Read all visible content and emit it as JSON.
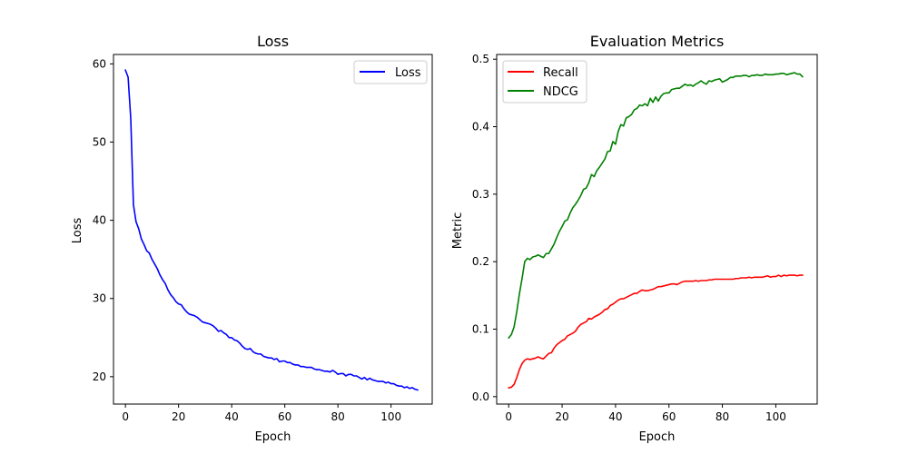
{
  "chart_data": [
    {
      "type": "line",
      "title": "Loss",
      "xlabel": "Epoch",
      "ylabel": "Loss",
      "xlim": [
        -4.5,
        115.5
      ],
      "ylim": [
        16.5,
        61.2
      ],
      "xticks": [
        0,
        20,
        40,
        60,
        80,
        100
      ],
      "yticks": [
        20,
        30,
        40,
        50,
        60
      ],
      "grid": false,
      "legend_position": "top-right",
      "series": [
        {
          "name": "Loss",
          "color": "#0000ff",
          "x": [
            0,
            1,
            2,
            3,
            4,
            5,
            6,
            7,
            8,
            9,
            10,
            11,
            12,
            13,
            14,
            15,
            16,
            17,
            18,
            19,
            20,
            21,
            22,
            23,
            24,
            25,
            26,
            27,
            28,
            29,
            30,
            31,
            32,
            33,
            34,
            35,
            36,
            37,
            38,
            39,
            40,
            41,
            42,
            43,
            44,
            45,
            46,
            47,
            48,
            49,
            50,
            51,
            52,
            53,
            54,
            55,
            56,
            57,
            58,
            59,
            60,
            61,
            62,
            63,
            64,
            65,
            66,
            67,
            68,
            69,
            70,
            71,
            72,
            73,
            74,
            75,
            76,
            77,
            78,
            79,
            80,
            81,
            82,
            83,
            84,
            85,
            86,
            87,
            88,
            89,
            90,
            91,
            92,
            93,
            94,
            95,
            96,
            97,
            98,
            99,
            100,
            101,
            102,
            103,
            104,
            105,
            106,
            107,
            108,
            109,
            110
          ],
          "values": [
            59.2,
            58.3,
            53.0,
            42.0,
            39.8,
            38.9,
            37.6,
            36.9,
            36.1,
            35.8,
            35.0,
            34.4,
            33.8,
            33.0,
            32.4,
            31.9,
            31.1,
            30.5,
            30.1,
            29.6,
            29.3,
            29.2,
            28.7,
            28.3,
            28.0,
            27.9,
            27.8,
            27.6,
            27.3,
            27.0,
            26.9,
            26.8,
            26.7,
            26.5,
            26.2,
            25.8,
            25.9,
            25.6,
            25.4,
            25.0,
            25.0,
            24.7,
            24.6,
            24.3,
            23.9,
            23.6,
            23.5,
            23.6,
            23.2,
            23.0,
            22.9,
            22.9,
            22.6,
            22.5,
            22.4,
            22.4,
            22.2,
            22.3,
            21.9,
            22.0,
            22.0,
            21.8,
            21.8,
            21.6,
            21.5,
            21.5,
            21.3,
            21.3,
            21.2,
            21.2,
            21.2,
            21.0,
            20.9,
            20.9,
            20.8,
            20.7,
            20.7,
            20.6,
            20.8,
            20.6,
            20.3,
            20.4,
            20.4,
            20.1,
            20.3,
            20.3,
            20.1,
            20.1,
            19.9,
            19.7,
            19.9,
            19.6,
            19.8,
            19.6,
            19.5,
            19.4,
            19.4,
            19.4,
            19.2,
            19.3,
            19.1,
            19.1,
            18.9,
            18.8,
            18.8,
            18.6,
            18.7,
            18.5,
            18.6,
            18.4,
            18.3
          ]
        }
      ]
    },
    {
      "type": "line",
      "title": "Evaluation Metrics",
      "xlabel": "Epoch",
      "ylabel": "Metric",
      "xlim": [
        -4.5,
        115.5
      ],
      "ylim": [
        -0.011,
        0.507
      ],
      "xticks": [
        0,
        20,
        40,
        60,
        80,
        100
      ],
      "yticks": [
        0.0,
        0.1,
        0.2,
        0.3,
        0.4,
        0.5
      ],
      "ytick_labels": [
        "0.0",
        "0.1",
        "0.2",
        "0.3",
        "0.4",
        "0.5"
      ],
      "grid": false,
      "legend_position": "top-left",
      "series": [
        {
          "name": "Recall",
          "color": "#ff0000",
          "x": [
            0,
            1,
            2,
            3,
            4,
            5,
            6,
            7,
            8,
            9,
            10,
            11,
            12,
            13,
            14,
            15,
            16,
            17,
            18,
            19,
            20,
            21,
            22,
            23,
            24,
            25,
            26,
            27,
            28,
            29,
            30,
            31,
            32,
            33,
            34,
            35,
            36,
            37,
            38,
            39,
            40,
            41,
            42,
            43,
            44,
            45,
            46,
            47,
            48,
            49,
            50,
            51,
            52,
            53,
            54,
            55,
            56,
            57,
            58,
            59,
            60,
            61,
            62,
            63,
            64,
            65,
            66,
            67,
            68,
            69,
            70,
            71,
            72,
            73,
            74,
            75,
            76,
            77,
            78,
            79,
            80,
            81,
            82,
            83,
            84,
            85,
            86,
            87,
            88,
            89,
            90,
            91,
            92,
            93,
            94,
            95,
            96,
            97,
            98,
            99,
            100,
            101,
            102,
            103,
            104,
            105,
            106,
            107,
            108,
            109,
            110
          ],
          "values": [
            0.013,
            0.014,
            0.018,
            0.028,
            0.04,
            0.049,
            0.054,
            0.056,
            0.055,
            0.056,
            0.057,
            0.059,
            0.057,
            0.056,
            0.06,
            0.064,
            0.065,
            0.072,
            0.077,
            0.08,
            0.083,
            0.085,
            0.09,
            0.092,
            0.094,
            0.097,
            0.103,
            0.107,
            0.109,
            0.111,
            0.116,
            0.115,
            0.118,
            0.12,
            0.122,
            0.125,
            0.129,
            0.13,
            0.135,
            0.137,
            0.14,
            0.143,
            0.145,
            0.145,
            0.147,
            0.149,
            0.151,
            0.153,
            0.153,
            0.156,
            0.158,
            0.157,
            0.157,
            0.158,
            0.159,
            0.161,
            0.163,
            0.163,
            0.164,
            0.165,
            0.166,
            0.167,
            0.167,
            0.166,
            0.168,
            0.17,
            0.171,
            0.171,
            0.171,
            0.171,
            0.172,
            0.171,
            0.172,
            0.172,
            0.172,
            0.173,
            0.173,
            0.174,
            0.174,
            0.174,
            0.174,
            0.174,
            0.174,
            0.174,
            0.174,
            0.175,
            0.175,
            0.176,
            0.176,
            0.176,
            0.177,
            0.176,
            0.177,
            0.177,
            0.177,
            0.177,
            0.178,
            0.179,
            0.177,
            0.178,
            0.178,
            0.18,
            0.178,
            0.18,
            0.179,
            0.18,
            0.18,
            0.18,
            0.179,
            0.18,
            0.18
          ]
        },
        {
          "name": "NDCG",
          "color": "#008000",
          "x": [
            0,
            1,
            2,
            3,
            4,
            5,
            6,
            7,
            8,
            9,
            10,
            11,
            12,
            13,
            14,
            15,
            16,
            17,
            18,
            19,
            20,
            21,
            22,
            23,
            24,
            25,
            26,
            27,
            28,
            29,
            30,
            31,
            32,
            33,
            34,
            35,
            36,
            37,
            38,
            39,
            40,
            41,
            42,
            43,
            44,
            45,
            46,
            47,
            48,
            49,
            50,
            51,
            52,
            53,
            54,
            55,
            56,
            57,
            58,
            59,
            60,
            61,
            62,
            63,
            64,
            65,
            66,
            67,
            68,
            69,
            70,
            71,
            72,
            73,
            74,
            75,
            76,
            77,
            78,
            79,
            80,
            81,
            82,
            83,
            84,
            85,
            86,
            87,
            88,
            89,
            90,
            91,
            92,
            93,
            94,
            95,
            96,
            97,
            98,
            99,
            100,
            101,
            102,
            103,
            104,
            105,
            106,
            107,
            108,
            109,
            110
          ],
          "values": [
            0.087,
            0.092,
            0.103,
            0.125,
            0.152,
            0.175,
            0.2,
            0.205,
            0.203,
            0.207,
            0.208,
            0.21,
            0.208,
            0.206,
            0.212,
            0.212,
            0.219,
            0.226,
            0.236,
            0.245,
            0.252,
            0.26,
            0.262,
            0.272,
            0.28,
            0.285,
            0.291,
            0.298,
            0.307,
            0.309,
            0.317,
            0.329,
            0.326,
            0.335,
            0.34,
            0.346,
            0.352,
            0.363,
            0.364,
            0.378,
            0.374,
            0.393,
            0.403,
            0.401,
            0.413,
            0.415,
            0.418,
            0.425,
            0.427,
            0.432,
            0.431,
            0.434,
            0.431,
            0.442,
            0.436,
            0.444,
            0.438,
            0.445,
            0.449,
            0.45,
            0.45,
            0.455,
            0.456,
            0.457,
            0.457,
            0.46,
            0.463,
            0.461,
            0.462,
            0.46,
            0.463,
            0.465,
            0.468,
            0.465,
            0.463,
            0.468,
            0.467,
            0.469,
            0.47,
            0.471,
            0.466,
            0.468,
            0.47,
            0.473,
            0.473,
            0.475,
            0.475,
            0.475,
            0.476,
            0.476,
            0.474,
            0.476,
            0.476,
            0.477,
            0.476,
            0.476,
            0.478,
            0.477,
            0.477,
            0.477,
            0.478,
            0.478,
            0.479,
            0.479,
            0.477,
            0.478,
            0.479,
            0.48,
            0.478,
            0.478,
            0.474
          ]
        }
      ]
    }
  ]
}
